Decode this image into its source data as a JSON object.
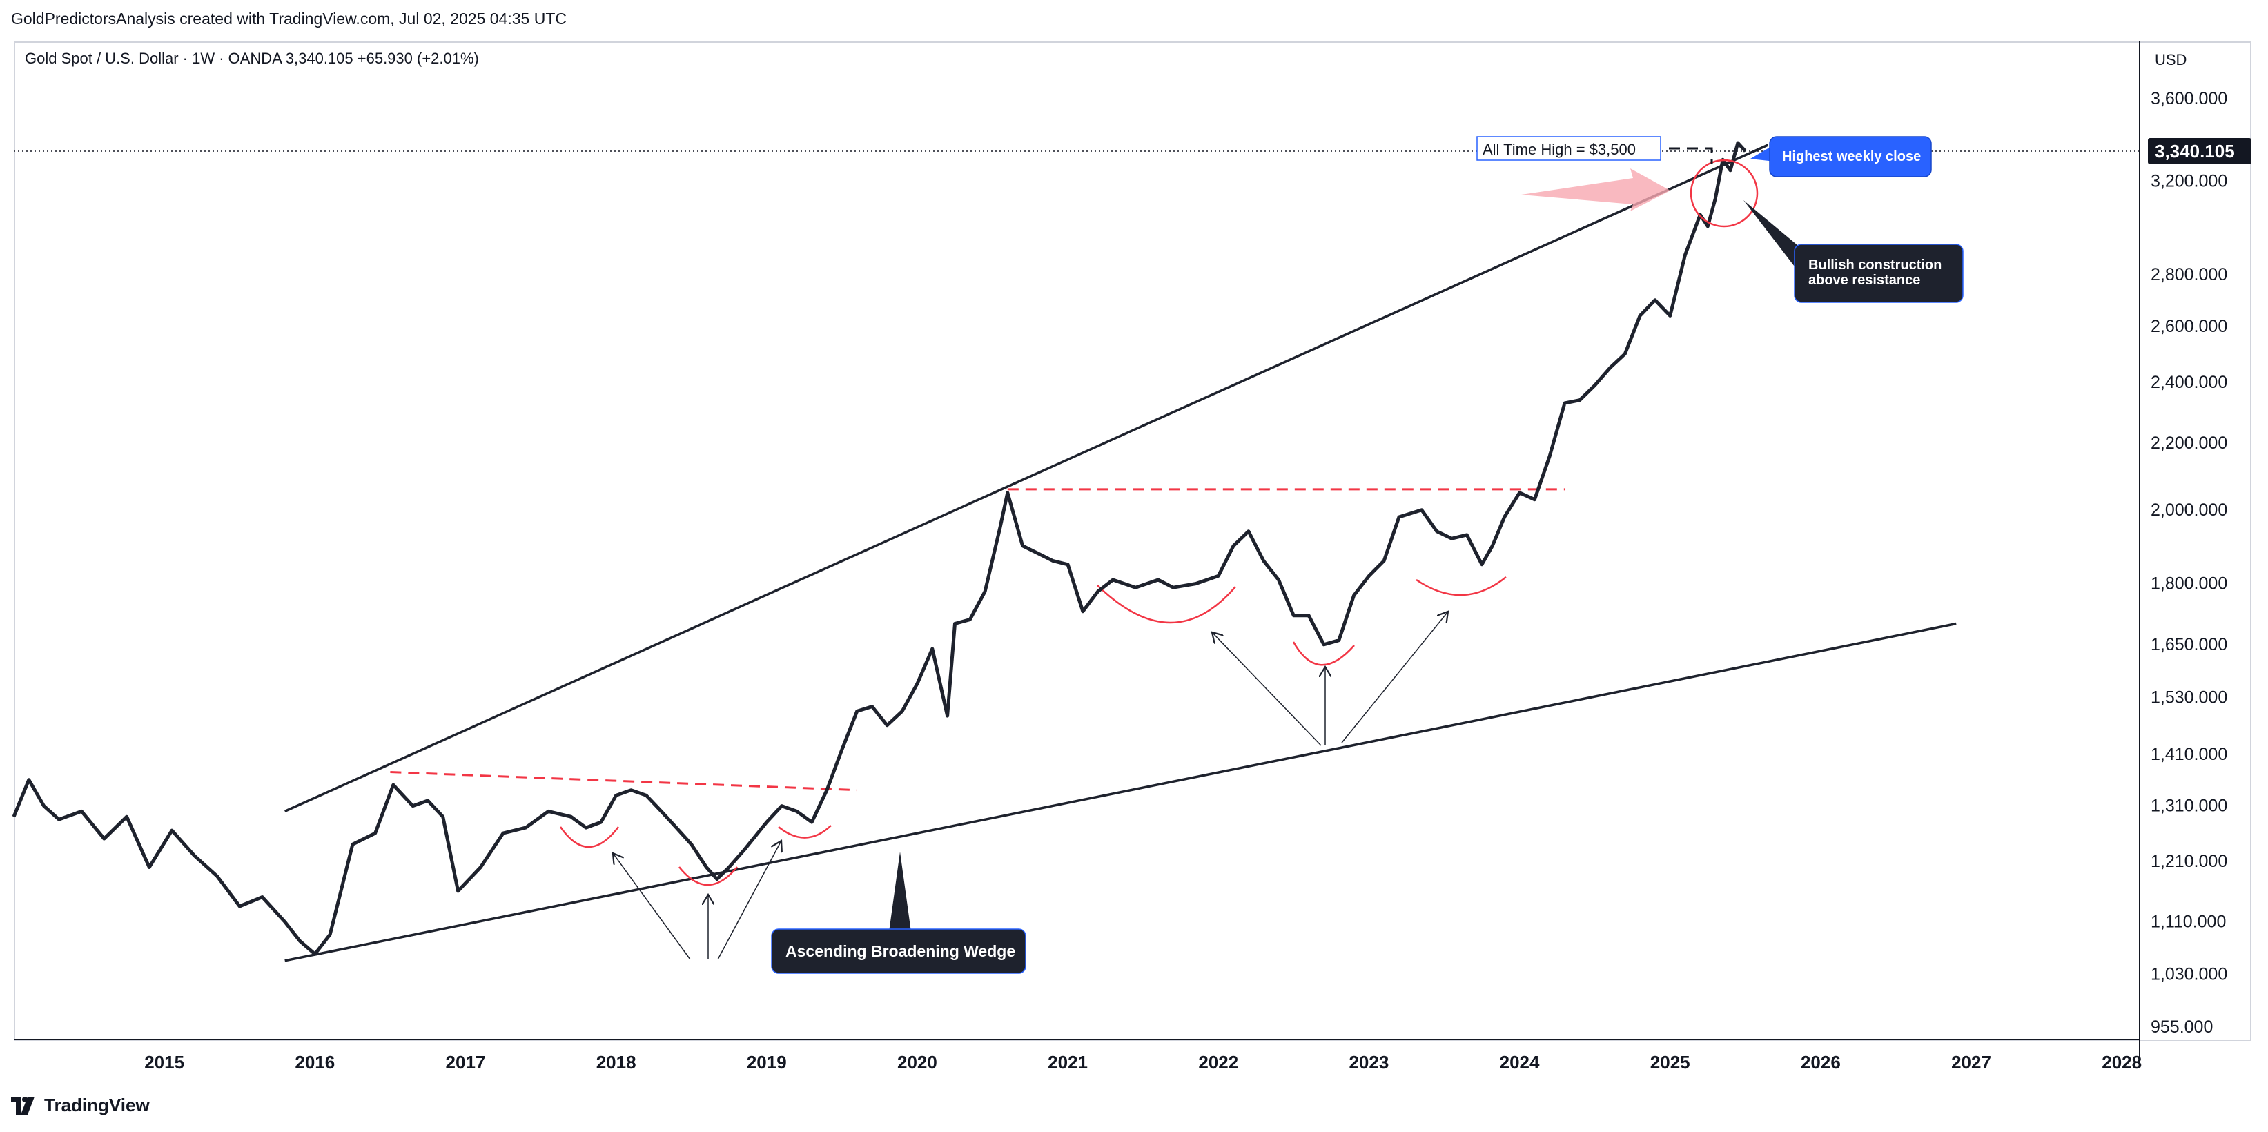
{
  "header": {
    "caption": "GoldPredictorsAnalysis created with TradingView.com, Jul 02, 2025 04:35 UTC",
    "symbol": "Gold Spot / U.S. Dollar · 1W · OANDA  3,340.105  +65.930 (+2.01%)"
  },
  "footer": {
    "brand": "TradingView"
  },
  "price_axis": {
    "currency": "USD",
    "last_price_label": "3,340.105"
  },
  "annotations": {
    "ath": "All Time High = $3,500",
    "highest_close": "Highest weekly close",
    "bullish_line1": "Bullish construction",
    "bullish_line2": "above resistance",
    "wedge": "Ascending Broadening Wedge"
  },
  "colors": {
    "line": "#1e222d",
    "resistance": "#f23645",
    "callout_blue": "#2962ff",
    "callout_dark": "#1e222d",
    "grid_border": "#d1d4dc",
    "pink_arrow": "#f7a8b0"
  },
  "chart_data": {
    "type": "line",
    "title": "",
    "xlabel": "",
    "ylabel": "",
    "scale": "log",
    "ylim": [
      940,
      3900
    ],
    "xlim": [
      2014.0,
      2028.1
    ],
    "x_ticks": [
      "2015",
      "2016",
      "2017",
      "2018",
      "2019",
      "2020",
      "2021",
      "2022",
      "2023",
      "2024",
      "2025",
      "2026",
      "2027",
      "2028"
    ],
    "y_ticks": [
      {
        "value": 955,
        "label": "955.000"
      },
      {
        "value": 1030,
        "label": "1,030.000"
      },
      {
        "value": 1110,
        "label": "1,110.000"
      },
      {
        "value": 1210,
        "label": "1,210.000"
      },
      {
        "value": 1310,
        "label": "1,310.000"
      },
      {
        "value": 1410,
        "label": "1,410.000"
      },
      {
        "value": 1530,
        "label": "1,530.000"
      },
      {
        "value": 1650,
        "label": "1,650.000"
      },
      {
        "value": 1800,
        "label": "1,800.000"
      },
      {
        "value": 2000,
        "label": "2,000.000"
      },
      {
        "value": 2200,
        "label": "2,200.000"
      },
      {
        "value": 2400,
        "label": "2,400.000"
      },
      {
        "value": 2600,
        "label": "2,600.000"
      },
      {
        "value": 2800,
        "label": "2,800.000"
      },
      {
        "value": 3200,
        "label": "3,200.000"
      },
      {
        "value": 3600,
        "label": "3,600.000"
      }
    ],
    "last_price": 3340.105,
    "series": [
      {
        "x": [
          2014.0,
          2014.1,
          2014.2,
          2014.3,
          2014.45,
          2014.6,
          2014.75,
          2014.9,
          2015.05,
          2015.2,
          2015.35,
          2015.5,
          2015.65,
          2015.8,
          2015.9,
          2016.0,
          2016.1,
          2016.25,
          2016.4,
          2016.52,
          2016.65,
          2016.75,
          2016.85,
          2016.95,
          2017.1,
          2017.25,
          2017.4,
          2017.55,
          2017.7,
          2017.8,
          2017.9,
          2018.0,
          2018.1,
          2018.2,
          2018.3,
          2018.4,
          2018.5,
          2018.6,
          2018.67,
          2018.75,
          2018.85,
          2019.0,
          2019.1,
          2019.2,
          2019.3,
          2019.4,
          2019.5,
          2019.6,
          2019.7,
          2019.8,
          2019.9,
          2020.0,
          2020.1,
          2020.2,
          2020.25,
          2020.35,
          2020.45,
          2020.55,
          2020.6,
          2020.7,
          2020.8,
          2020.9,
          2021.0,
          2021.1,
          2021.2,
          2021.3,
          2021.45,
          2021.6,
          2021.7,
          2021.85,
          2022.0,
          2022.1,
          2022.2,
          2022.3,
          2022.4,
          2022.5,
          2022.6,
          2022.7,
          2022.8,
          2022.9,
          2023.0,
          2023.1,
          2023.2,
          2023.35,
          2023.45,
          2023.55,
          2023.65,
          2023.75,
          2023.82,
          2023.9,
          2024.0,
          2024.1,
          2024.2,
          2024.3,
          2024.4,
          2024.5,
          2024.6,
          2024.7,
          2024.8,
          2024.9,
          2025.0,
          2025.1,
          2025.2,
          2025.25,
          2025.3,
          2025.35,
          2025.4,
          2025.45,
          2025.5
        ],
        "y": [
          1290,
          1360,
          1310,
          1285,
          1300,
          1250,
          1290,
          1200,
          1265,
          1220,
          1185,
          1135,
          1150,
          1110,
          1080,
          1060,
          1090,
          1240,
          1260,
          1350,
          1310,
          1320,
          1290,
          1160,
          1200,
          1260,
          1270,
          1300,
          1290,
          1270,
          1280,
          1330,
          1340,
          1330,
          1300,
          1270,
          1240,
          1200,
          1180,
          1200,
          1230,
          1280,
          1310,
          1300,
          1280,
          1340,
          1420,
          1500,
          1510,
          1470,
          1500,
          1560,
          1640,
          1490,
          1700,
          1710,
          1780,
          1950,
          2050,
          1900,
          1880,
          1860,
          1850,
          1730,
          1780,
          1810,
          1790,
          1810,
          1790,
          1800,
          1820,
          1900,
          1940,
          1860,
          1810,
          1720,
          1720,
          1650,
          1660,
          1770,
          1820,
          1860,
          1980,
          2000,
          1940,
          1920,
          1930,
          1850,
          1900,
          1980,
          2050,
          2030,
          2160,
          2330,
          2340,
          2390,
          2450,
          2500,
          2640,
          2700,
          2640,
          2880,
          3050,
          3000,
          3120,
          3300,
          3250,
          3380,
          3340.105
        ]
      }
    ],
    "trendlines": [
      {
        "name": "wedge-upper",
        "from": [
          2015.8,
          1300
        ],
        "to": [
          2025.65,
          3370
        ]
      },
      {
        "name": "wedge-lower",
        "from": [
          2015.8,
          1050
        ],
        "to": [
          2026.9,
          1700
        ]
      },
      {
        "name": "resistance-2016",
        "from": [
          2016.5,
          1375
        ],
        "to": [
          2019.6,
          1340
        ],
        "dashed": true
      },
      {
        "name": "resistance-2020",
        "from": [
          2020.6,
          2060
        ],
        "to": [
          2024.3,
          2060
        ],
        "dashed": true
      }
    ]
  }
}
